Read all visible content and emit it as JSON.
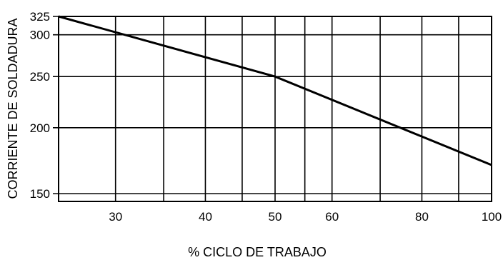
{
  "chart_data": {
    "type": "line",
    "title": "",
    "xlabel": "% CICLO DE TRABAJO",
    "ylabel": "CORRIENTE DE SOLDADURA",
    "x_scale": "log",
    "y_scale": "log",
    "xlim": [
      25,
      100
    ],
    "ylim": [
      145,
      325
    ],
    "x_ticks": [
      30,
      40,
      50,
      60,
      80,
      100
    ],
    "x_tick_labels": [
      "30",
      "40",
      "50",
      "60",
      "80",
      "100"
    ],
    "x_gridlines": [
      30,
      35,
      40,
      45,
      50,
      55,
      60,
      70,
      80,
      90,
      100
    ],
    "y_ticks": [
      150,
      200,
      250,
      300,
      325
    ],
    "y_tick_labels": [
      "150",
      "200",
      "250",
      "300",
      "325"
    ],
    "y_gridlines": [
      150,
      200,
      250,
      300,
      325
    ],
    "grid": true,
    "legend": "none",
    "series": [
      {
        "x": [
          25,
          50,
          100
        ],
        "y": [
          325,
          250,
          170
        ]
      }
    ],
    "colors": {
      "line": "#000000",
      "grid": "#000000",
      "background": "#ffffff"
    }
  }
}
